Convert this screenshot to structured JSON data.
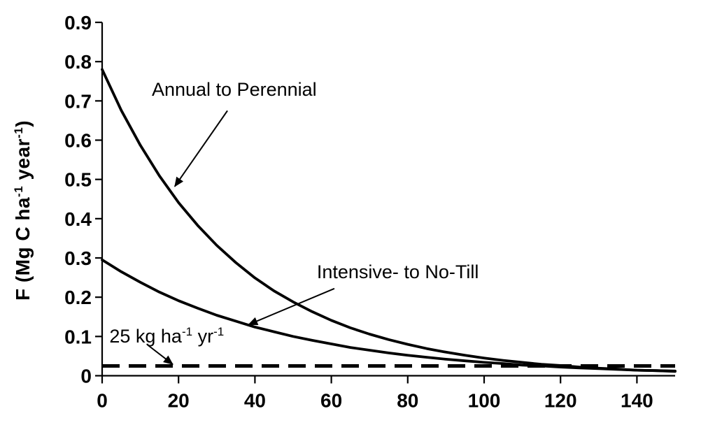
{
  "figure": {
    "background": "#ffffff",
    "ink_color": "#000000"
  },
  "chart_data": {
    "type": "line",
    "title": "",
    "xlabel": "",
    "ylabel": "F (Mg C ha^-1 year^-1)",
    "ylabel_parts": {
      "text1": "F (Mg C ha",
      "sup1": "-1",
      "text2": " year",
      "sup2": "-1",
      "text3": ")"
    },
    "xlim": [
      0,
      150
    ],
    "ylim": [
      0,
      0.9
    ],
    "grid": false,
    "legend_position": "none",
    "x_ticks": [
      {
        "v": 0,
        "label": "0"
      },
      {
        "v": 20,
        "label": "20"
      },
      {
        "v": 40,
        "label": "40"
      },
      {
        "v": 60,
        "label": "60"
      },
      {
        "v": 80,
        "label": "80"
      },
      {
        "v": 100,
        "label": "100"
      },
      {
        "v": 120,
        "label": "120"
      },
      {
        "v": 140,
        "label": "140"
      }
    ],
    "y_ticks": [
      {
        "v": 0,
        "label": "0"
      },
      {
        "v": 0.1,
        "label": "0.1"
      },
      {
        "v": 0.2,
        "label": "0.2"
      },
      {
        "v": 0.3,
        "label": "0.3"
      },
      {
        "v": 0.4,
        "label": "0.4"
      },
      {
        "v": 0.5,
        "label": "0.5"
      },
      {
        "v": 0.6,
        "label": "0.6"
      },
      {
        "v": 0.7,
        "label": "0.7"
      },
      {
        "v": 0.8,
        "label": "0.8"
      },
      {
        "v": 0.9,
        "label": "0.9"
      }
    ],
    "series": [
      {
        "name": "Annual to Perennial",
        "x": [
          0,
          5,
          10,
          15,
          20,
          25,
          30,
          35,
          40,
          45,
          50,
          55,
          60,
          65,
          70,
          75,
          80,
          85,
          90,
          95,
          100,
          105,
          110,
          115,
          120,
          125,
          130,
          135,
          140,
          145,
          150
        ],
        "y": [
          0.78,
          0.676,
          0.587,
          0.509,
          0.441,
          0.383,
          0.332,
          0.288,
          0.249,
          0.216,
          0.188,
          0.163,
          0.141,
          0.122,
          0.106,
          0.092,
          0.08,
          0.069,
          0.06,
          0.052,
          0.045,
          0.039,
          0.034,
          0.029,
          0.026,
          0.022,
          0.019,
          0.017,
          0.014,
          0.013,
          0.011
        ]
      },
      {
        "name": "Intensive- to No-Till",
        "x": [
          0,
          5,
          10,
          15,
          20,
          25,
          30,
          35,
          40,
          45,
          50,
          55,
          60,
          65,
          70,
          75,
          80,
          85,
          90,
          95,
          100,
          105,
          110,
          115,
          120,
          125,
          130,
          135,
          140,
          145,
          150
        ],
        "y": [
          0.295,
          0.265,
          0.238,
          0.213,
          0.191,
          0.172,
          0.154,
          0.139,
          0.124,
          0.112,
          0.1,
          0.09,
          0.081,
          0.072,
          0.065,
          0.058,
          0.052,
          0.047,
          0.042,
          0.038,
          0.034,
          0.031,
          0.027,
          0.025,
          0.022,
          0.02,
          0.018,
          0.016,
          0.014,
          0.013,
          0.012
        ]
      }
    ],
    "reference_line": {
      "value": 0.025,
      "style": "dashed",
      "label": "25 kg ha^-1 yr^-1"
    },
    "annotations": [
      {
        "id": "annual-to-perennial-label",
        "parts": [
          {
            "t": "Annual to Perennial"
          }
        ],
        "label_pos": {
          "x": 13.0,
          "y": 0.756
        },
        "arrow": {
          "from": {
            "x": 32.8,
            "y": 0.675
          },
          "to": {
            "x": 19.0,
            "y": 0.482
          }
        }
      },
      {
        "id": "intensive-to-no-till-label",
        "parts": [
          {
            "t": "Intensive- to No-Till"
          }
        ],
        "label_pos": {
          "x": 56.2,
          "y": 0.291
        },
        "arrow": {
          "from": {
            "x": 60.8,
            "y": 0.222
          },
          "to": {
            "x": 38.3,
            "y": 0.13
          }
        }
      },
      {
        "id": "reference-line-label",
        "parts": [
          {
            "t": "25 kg ha"
          },
          {
            "t": "-1",
            "sup": true
          },
          {
            "t": " yr"
          },
          {
            "t": "-1",
            "sup": true
          }
        ],
        "label_pos": {
          "x": 1.9,
          "y": 0.127
        },
        "arrow": {
          "from": {
            "x": 12.1,
            "y": 0.077
          },
          "to": {
            "x": 18.5,
            "y": 0.029
          }
        }
      }
    ]
  }
}
